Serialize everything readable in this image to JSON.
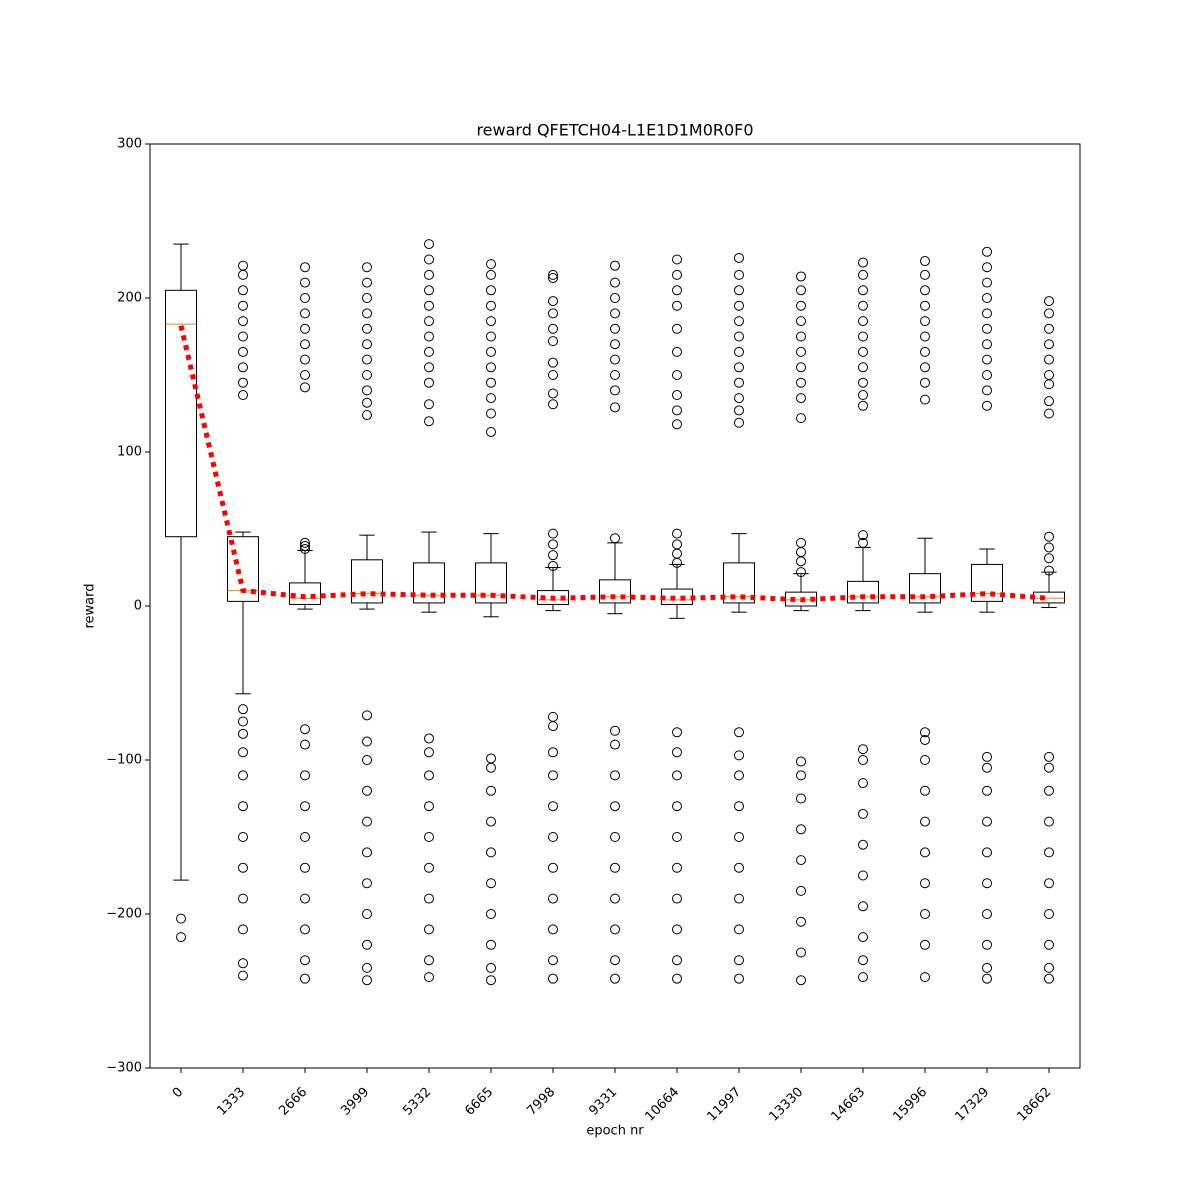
{
  "chart_data": {
    "type": "box",
    "title": "reward QFETCH04-L1E1D1M0R0F0",
    "x_label": "epoch nr",
    "y_label": "reward",
    "categories": [
      "0",
      "1333",
      "2666",
      "3999",
      "5332",
      "6665",
      "7998",
      "9331",
      "10664",
      "11997",
      "13330",
      "14663",
      "15996",
      "17329",
      "18662"
    ],
    "box_color": "#000000",
    "median_color": "#ff7f0e",
    "boxes": [
      {
        "whislo": -178,
        "q1": 45,
        "med": 183,
        "q3": 205,
        "whishi": 235,
        "fliers": [
          -203,
          -215
        ]
      },
      {
        "whislo": -57,
        "q1": 3,
        "med": 10,
        "q3": 45,
        "whishi": 48,
        "fliers": [
          221,
          215,
          205,
          195,
          185,
          175,
          165,
          155,
          145,
          137,
          -67,
          -75,
          -83,
          -95,
          -110,
          -130,
          -150,
          -170,
          -190,
          -210,
          -232,
          -240
        ]
      },
      {
        "whislo": -2,
        "q1": 1,
        "med": 5,
        "q3": 15,
        "whishi": 36,
        "fliers": [
          220,
          210,
          200,
          190,
          180,
          170,
          160,
          150,
          142,
          41,
          39,
          37,
          -80,
          -90,
          -110,
          -130,
          -150,
          -170,
          -190,
          -210,
          -230,
          -242
        ]
      },
      {
        "whislo": -2,
        "q1": 2,
        "med": 8,
        "q3": 30,
        "whishi": 46,
        "fliers": [
          220,
          210,
          200,
          190,
          180,
          170,
          160,
          150,
          140,
          132,
          124,
          -71,
          -88,
          -100,
          -120,
          -140,
          -160,
          -180,
          -200,
          -220,
          -235,
          -243
        ]
      },
      {
        "whislo": -4,
        "q1": 2,
        "med": 7,
        "q3": 28,
        "whishi": 48,
        "fliers": [
          235,
          225,
          215,
          205,
          195,
          185,
          175,
          165,
          155,
          145,
          131,
          120,
          -86,
          -95,
          -110,
          -130,
          -150,
          -170,
          -190,
          -210,
          -230,
          -241
        ]
      },
      {
        "whislo": -7,
        "q1": 2,
        "med": 7,
        "q3": 28,
        "whishi": 47,
        "fliers": [
          222,
          215,
          205,
          195,
          185,
          175,
          165,
          155,
          145,
          135,
          125,
          113,
          -99,
          -105,
          -120,
          -140,
          -160,
          -180,
          -200,
          -220,
          -235,
          -243
        ]
      },
      {
        "whislo": -3,
        "q1": 1,
        "med": 4,
        "q3": 10,
        "whishi": 25,
        "fliers": [
          215,
          213,
          198,
          190,
          180,
          172,
          158,
          150,
          138,
          131,
          47,
          40,
          33,
          26,
          -72,
          -78,
          -95,
          -110,
          -130,
          -150,
          -170,
          -190,
          -210,
          -230,
          -242
        ]
      },
      {
        "whislo": -5,
        "q1": 2,
        "med": 6,
        "q3": 17,
        "whishi": 41,
        "fliers": [
          221,
          210,
          200,
          190,
          180,
          170,
          160,
          150,
          140,
          129,
          44,
          -81,
          -90,
          -110,
          -130,
          -150,
          -170,
          -190,
          -210,
          -230,
          -242
        ]
      },
      {
        "whislo": -8,
        "q1": 1,
        "med": 4,
        "q3": 11,
        "whishi": 27,
        "fliers": [
          225,
          215,
          205,
          195,
          180,
          165,
          150,
          137,
          127,
          118,
          47,
          40,
          34,
          28,
          -82,
          -95,
          -110,
          -130,
          -150,
          -170,
          -190,
          -210,
          -230,
          -242
        ]
      },
      {
        "whislo": -4,
        "q1": 2,
        "med": 6,
        "q3": 28,
        "whishi": 47,
        "fliers": [
          226,
          215,
          205,
          195,
          185,
          175,
          165,
          155,
          145,
          135,
          127,
          119,
          -82,
          -97,
          -110,
          -130,
          -150,
          -170,
          -190,
          -210,
          -230,
          -242
        ]
      },
      {
        "whislo": -3,
        "q1": 0,
        "med": 4,
        "q3": 9,
        "whishi": 21,
        "fliers": [
          214,
          205,
          195,
          185,
          175,
          165,
          155,
          145,
          135,
          122,
          41,
          35,
          29,
          22,
          -101,
          -110,
          -125,
          -145,
          -165,
          -185,
          -205,
          -225,
          -243
        ]
      },
      {
        "whislo": -3,
        "q1": 2,
        "med": 6,
        "q3": 16,
        "whishi": 38,
        "fliers": [
          223,
          215,
          205,
          195,
          185,
          175,
          165,
          155,
          145,
          137,
          130,
          46,
          41,
          -93,
          -100,
          -115,
          -135,
          -155,
          -175,
          -195,
          -215,
          -230,
          -241
        ]
      },
      {
        "whislo": -4,
        "q1": 2,
        "med": 6,
        "q3": 21,
        "whishi": 44,
        "fliers": [
          224,
          215,
          205,
          195,
          185,
          175,
          165,
          155,
          145,
          134,
          -82,
          -87,
          -100,
          -120,
          -140,
          -160,
          -180,
          -200,
          -220,
          -241
        ]
      },
      {
        "whislo": -4,
        "q1": 3,
        "med": 8,
        "q3": 27,
        "whishi": 37,
        "fliers": [
          230,
          220,
          210,
          200,
          190,
          180,
          170,
          160,
          150,
          140,
          130,
          -98,
          -105,
          -120,
          -140,
          -160,
          -180,
          -200,
          -220,
          -235,
          -242
        ]
      },
      {
        "whislo": -1,
        "q1": 2,
        "med": 5,
        "q3": 9,
        "whishi": 22,
        "fliers": [
          198,
          190,
          180,
          170,
          160,
          150,
          144,
          133,
          125,
          45,
          38,
          31,
          23,
          -98,
          -105,
          -120,
          -140,
          -160,
          -180,
          -200,
          -220,
          -235,
          -242
        ]
      }
    ],
    "trend": {
      "color": "#ff0000",
      "values": [
        182,
        10,
        6,
        8,
        7,
        7,
        5,
        6,
        5,
        6,
        4,
        6,
        6,
        8,
        5
      ]
    },
    "ylim": [
      -300,
      300
    ],
    "yticks": [
      {
        "value": -300,
        "label": "−300"
      },
      {
        "value": -200,
        "label": "−200"
      },
      {
        "value": -100,
        "label": "−100"
      },
      0,
      100,
      200,
      300
    ]
  }
}
